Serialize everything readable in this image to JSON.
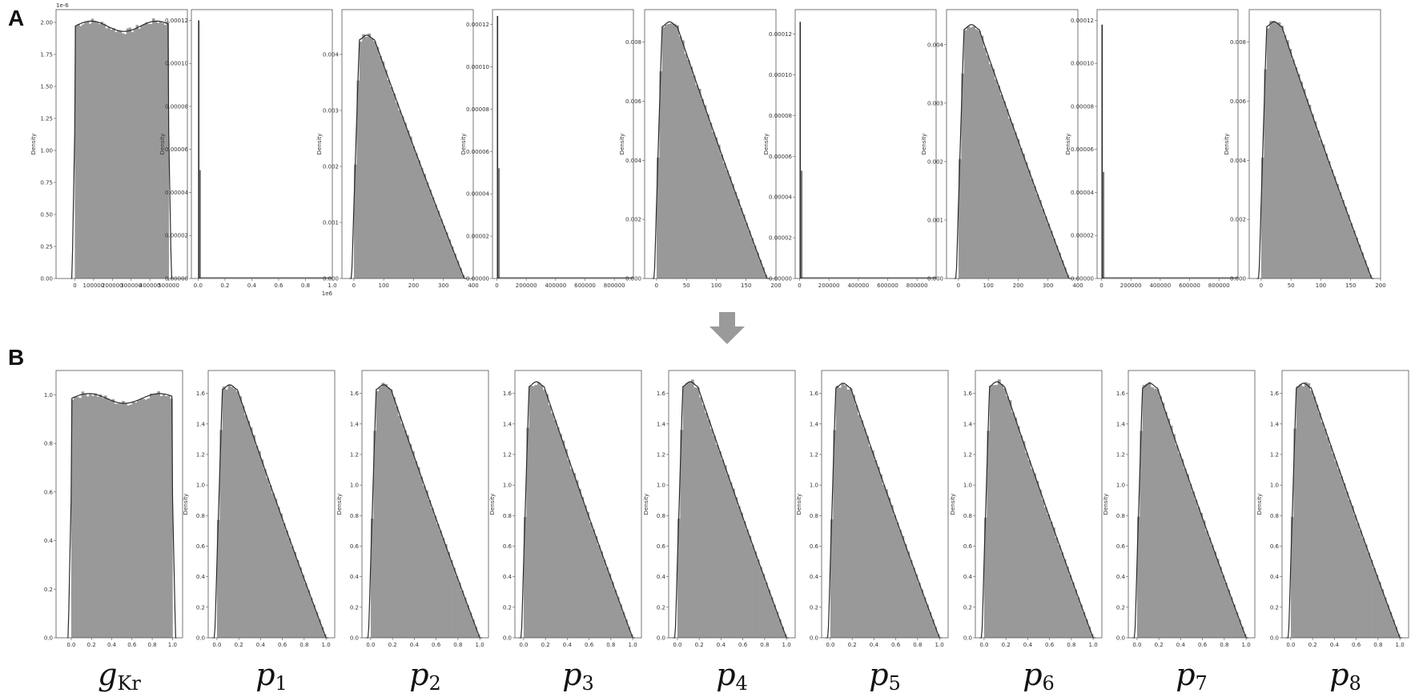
{
  "panels": {
    "a_label": "A",
    "b_label": "B"
  },
  "colors": {
    "fill": "#999999",
    "line": "#2a2a2a",
    "frame": "#555555",
    "arrow": "#9a9a9a"
  },
  "arrow_icon": "down-arrow-icon",
  "bottom_labels": [
    {
      "base": "g",
      "sub": "Kr"
    },
    {
      "base": "p",
      "sub": "1"
    },
    {
      "base": "p",
      "sub": "2"
    },
    {
      "base": "p",
      "sub": "3"
    },
    {
      "base": "p",
      "sub": "4"
    },
    {
      "base": "p",
      "sub": "5"
    },
    {
      "base": "p",
      "sub": "6"
    },
    {
      "base": "p",
      "sub": "7"
    },
    {
      "base": "p",
      "sub": "8"
    }
  ],
  "chart_data": [
    {
      "type": "area",
      "panel": "A",
      "shape": "uniform",
      "ylabel": "Density",
      "ylim": [
        0,
        2.1
      ],
      "offset_text": "1e-6",
      "yticks": [
        "0.00",
        "0.25",
        "0.50",
        "0.75",
        "1.00",
        "1.25",
        "1.50",
        "1.75",
        "2.00"
      ],
      "xlim": [
        -100000,
        600000
      ],
      "xtick_values": [
        0,
        100000,
        200000,
        300000,
        400000,
        500000
      ],
      "xticks": [
        "0",
        "100000",
        "200000",
        "300000",
        "400000",
        "500000"
      ],
      "support": [
        0,
        500000
      ],
      "peak": 2.0
    },
    {
      "type": "area",
      "panel": "A",
      "shape": "spike",
      "ylabel": "Density",
      "ylim": [
        0,
        0.000125
      ],
      "yticks": [
        "0.00000",
        "0.00002",
        "0.00004",
        "0.00006",
        "0.00008",
        "0.00010",
        "0.00012"
      ],
      "xlim": [
        -0.05,
        1.0
      ],
      "xtick_values": [
        0,
        0.2,
        0.4,
        0.6,
        0.8,
        1.0
      ],
      "xticks": [
        "0.0",
        "0.2",
        "0.4",
        "0.6",
        "0.8",
        "1.0"
      ],
      "x_offset_text": "1e6",
      "spike_x": 0.0,
      "peak": 0.00012
    },
    {
      "type": "area",
      "panel": "A",
      "shape": "skewed",
      "ylabel": "Density",
      "ylim": [
        0,
        0.0048
      ],
      "yticks": [
        "0.000",
        "0.001",
        "0.002",
        "0.003",
        "0.004"
      ],
      "xlim": [
        -40,
        400
      ],
      "xtick_values": [
        0,
        100,
        200,
        300,
        400
      ],
      "xticks": [
        "0",
        "100",
        "200",
        "300",
        "400"
      ],
      "support": [
        0,
        370
      ],
      "peak": 0.0043
    },
    {
      "type": "area",
      "panel": "A",
      "shape": "spike",
      "ylabel": "Density",
      "ylim": [
        0,
        0.000127
      ],
      "yticks": [
        "0.00000",
        "0.00002",
        "0.00004",
        "0.00006",
        "0.00008",
        "0.00010",
        "0.00012"
      ],
      "xlim": [
        -30000,
        930000
      ],
      "xtick_values": [
        0,
        200000,
        400000,
        600000,
        800000
      ],
      "xticks": [
        "0",
        "200000",
        "400000",
        "600000",
        "800000"
      ],
      "spike_x": 0,
      "peak": 0.000124
    },
    {
      "type": "area",
      "panel": "A",
      "shape": "skewed",
      "ylabel": "Density",
      "ylim": [
        0,
        0.0091
      ],
      "yticks": [
        "0.000",
        "0.002",
        "0.004",
        "0.006",
        "0.008"
      ],
      "xlim": [
        -20,
        200
      ],
      "xtick_values": [
        0,
        50,
        100,
        150,
        200
      ],
      "xticks": [
        "0",
        "50",
        "100",
        "150",
        "200"
      ],
      "support": [
        0,
        185
      ],
      "peak": 0.0086
    },
    {
      "type": "area",
      "panel": "A",
      "shape": "spike",
      "ylabel": "Density",
      "ylim": [
        0,
        0.000132
      ],
      "yticks": [
        "0.00000",
        "0.00002",
        "0.00004",
        "0.00006",
        "0.00008",
        "0.00010",
        "0.00012"
      ],
      "xlim": [
        -30000,
        930000
      ],
      "xtick_values": [
        0,
        200000,
        400000,
        600000,
        800000
      ],
      "xticks": [
        "0",
        "200000",
        "400000",
        "600000",
        "800000"
      ],
      "spike_x": 0,
      "peak": 0.000126
    },
    {
      "type": "area",
      "panel": "A",
      "shape": "skewed",
      "ylabel": "Density",
      "ylim": [
        0,
        0.0046
      ],
      "yticks": [
        "0.000",
        "0.001",
        "0.002",
        "0.003",
        "0.004"
      ],
      "xlim": [
        -40,
        400
      ],
      "xtick_values": [
        0,
        100,
        200,
        300,
        400
      ],
      "xticks": [
        "0",
        "100",
        "200",
        "300",
        "400"
      ],
      "support": [
        0,
        370
      ],
      "peak": 0.0043
    },
    {
      "type": "area",
      "panel": "A",
      "shape": "spike",
      "ylabel": "Density",
      "ylim": [
        0,
        0.000125
      ],
      "yticks": [
        "0.00000",
        "0.00002",
        "0.00004",
        "0.00006",
        "0.00008",
        "0.00010",
        "0.00012"
      ],
      "xlim": [
        -30000,
        930000
      ],
      "xtick_values": [
        0,
        200000,
        400000,
        600000,
        800000
      ],
      "xticks": [
        "0",
        "200000",
        "400000",
        "600000",
        "800000"
      ],
      "spike_x": 0,
      "peak": 0.000118
    },
    {
      "type": "area",
      "panel": "A",
      "shape": "skewed",
      "ylabel": "Density",
      "ylim": [
        0,
        0.0091
      ],
      "yticks": [
        "0.000",
        "0.002",
        "0.004",
        "0.006",
        "0.008"
      ],
      "xlim": [
        -20,
        200
      ],
      "xtick_values": [
        0,
        50,
        100,
        150,
        200
      ],
      "xticks": [
        "0",
        "50",
        "100",
        "150",
        "200"
      ],
      "support": [
        0,
        185
      ],
      "peak": 0.0086
    },
    {
      "type": "area",
      "panel": "B",
      "shape": "uniform",
      "ylabel": "",
      "ylim": [
        0,
        1.1
      ],
      "yticks": [
        "0.0",
        "0.2",
        "0.4",
        "0.6",
        "0.8",
        "1.0"
      ],
      "xlim": [
        -0.15,
        1.1
      ],
      "xtick_values": [
        0,
        0.2,
        0.4,
        0.6,
        0.8,
        1.0
      ],
      "xticks": [
        "0.0",
        "0.2",
        "0.4",
        "0.6",
        "0.8",
        "1.0"
      ],
      "support": [
        0,
        1
      ],
      "peak": 1.0
    },
    {
      "type": "area",
      "panel": "B",
      "shape": "skewed",
      "ylabel": "Density",
      "ylim": [
        0,
        1.75
      ],
      "yticks": [
        "0.0",
        "0.2",
        "0.4",
        "0.6",
        "0.8",
        "1.0",
        "1.2",
        "1.4",
        "1.6"
      ],
      "xlim": [
        -0.08,
        1.08
      ],
      "xtick_values": [
        0,
        0.2,
        0.4,
        0.6,
        0.8,
        1.0
      ],
      "xticks": [
        "0.0",
        "0.2",
        "0.4",
        "0.6",
        "0.8",
        "1.0"
      ],
      "support": [
        0,
        1
      ],
      "peak": 1.64
    },
    {
      "type": "area",
      "panel": "B",
      "shape": "skewed",
      "ylabel": "Density",
      "ylim": [
        0,
        1.75
      ],
      "yticks": [
        "0.0",
        "0.2",
        "0.4",
        "0.6",
        "0.8",
        "1.0",
        "1.2",
        "1.4",
        "1.6"
      ],
      "xlim": [
        -0.08,
        1.08
      ],
      "xtick_values": [
        0,
        0.2,
        0.4,
        0.6,
        0.8,
        1.0
      ],
      "xticks": [
        "0.0",
        "0.2",
        "0.4",
        "0.6",
        "0.8",
        "1.0"
      ],
      "support": [
        0,
        1
      ],
      "peak": 1.64
    },
    {
      "type": "area",
      "panel": "B",
      "shape": "skewed",
      "ylabel": "Density",
      "ylim": [
        0,
        1.75
      ],
      "yticks": [
        "0.0",
        "0.2",
        "0.4",
        "0.6",
        "0.8",
        "1.0",
        "1.2",
        "1.4",
        "1.6"
      ],
      "xlim": [
        -0.08,
        1.08
      ],
      "xtick_values": [
        0,
        0.2,
        0.4,
        0.6,
        0.8,
        1.0
      ],
      "xticks": [
        "0.0",
        "0.2",
        "0.4",
        "0.6",
        "0.8",
        "1.0"
      ],
      "support": [
        0,
        1
      ],
      "peak": 1.66
    },
    {
      "type": "area",
      "panel": "B",
      "shape": "skewed",
      "ylabel": "Density",
      "ylim": [
        0,
        1.75
      ],
      "yticks": [
        "0.0",
        "0.2",
        "0.4",
        "0.6",
        "0.8",
        "1.0",
        "1.2",
        "1.4",
        "1.6"
      ],
      "xlim": [
        -0.08,
        1.08
      ],
      "xtick_values": [
        0,
        0.2,
        0.4,
        0.6,
        0.8,
        1.0
      ],
      "xticks": [
        "0.0",
        "0.2",
        "0.4",
        "0.6",
        "0.8",
        "1.0"
      ],
      "support": [
        0,
        1
      ],
      "peak": 1.66
    },
    {
      "type": "area",
      "panel": "B",
      "shape": "skewed",
      "ylabel": "Density",
      "ylim": [
        0,
        1.75
      ],
      "yticks": [
        "0.0",
        "0.2",
        "0.4",
        "0.6",
        "0.8",
        "1.0",
        "1.2",
        "1.4",
        "1.6"
      ],
      "xlim": [
        -0.08,
        1.08
      ],
      "xtick_values": [
        0,
        0.2,
        0.4,
        0.6,
        0.8,
        1.0
      ],
      "xticks": [
        "0.0",
        "0.2",
        "0.4",
        "0.6",
        "0.8",
        "1.0"
      ],
      "support": [
        0,
        1
      ],
      "peak": 1.65
    },
    {
      "type": "area",
      "panel": "B",
      "shape": "skewed",
      "ylabel": "Density",
      "ylim": [
        0,
        1.75
      ],
      "yticks": [
        "0.0",
        "0.2",
        "0.4",
        "0.6",
        "0.8",
        "1.0",
        "1.2",
        "1.4",
        "1.6"
      ],
      "xlim": [
        -0.08,
        1.08
      ],
      "xtick_values": [
        0,
        0.2,
        0.4,
        0.6,
        0.8,
        1.0
      ],
      "xticks": [
        "0.0",
        "0.2",
        "0.4",
        "0.6",
        "0.8",
        "1.0"
      ],
      "support": [
        0,
        1
      ],
      "peak": 1.66
    },
    {
      "type": "area",
      "panel": "B",
      "shape": "skewed",
      "ylabel": "Density",
      "ylim": [
        0,
        1.75
      ],
      "yticks": [
        "0.0",
        "0.2",
        "0.4",
        "0.6",
        "0.8",
        "1.0",
        "1.2",
        "1.4",
        "1.6"
      ],
      "xlim": [
        -0.08,
        1.08
      ],
      "xtick_values": [
        0,
        0.2,
        0.4,
        0.6,
        0.8,
        1.0
      ],
      "xticks": [
        "0.0",
        "0.2",
        "0.4",
        "0.6",
        "0.8",
        "1.0"
      ],
      "support": [
        0,
        1
      ],
      "peak": 1.65
    },
    {
      "type": "area",
      "panel": "B",
      "shape": "skewed",
      "ylabel": "Density",
      "ylim": [
        0,
        1.75
      ],
      "yticks": [
        "0.0",
        "0.2",
        "0.4",
        "0.6",
        "0.8",
        "1.0",
        "1.2",
        "1.4",
        "1.6"
      ],
      "xlim": [
        -0.08,
        1.08
      ],
      "xtick_values": [
        0,
        0.2,
        0.4,
        0.6,
        0.8,
        1.0
      ],
      "xticks": [
        "0.0",
        "0.2",
        "0.4",
        "0.6",
        "0.8",
        "1.0"
      ],
      "support": [
        0,
        1
      ],
      "peak": 1.65
    }
  ]
}
